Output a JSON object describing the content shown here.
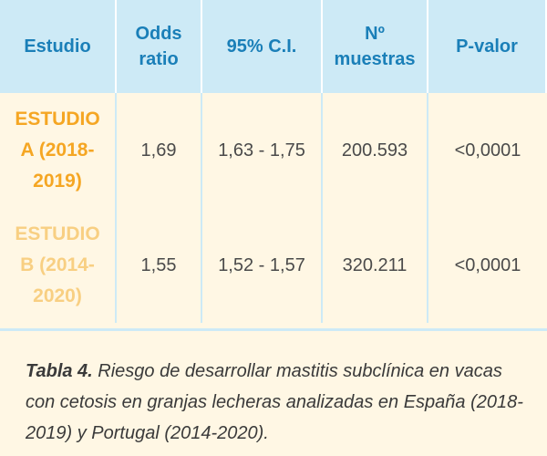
{
  "table": {
    "headers": [
      "Estudio",
      "Odds\nratio",
      "95% C.I.",
      "Nº\nmuestras",
      "P-valor"
    ],
    "rows": [
      {
        "study": "ESTUDIO\nA (2018-\n2019)",
        "odds_ratio": "1,69",
        "ci": "1,63 - 1,75",
        "samples": "200.593",
        "p_value": "<0,0001"
      },
      {
        "study": "ESTUDIO\nB (2014-\n2020)",
        "odds_ratio": "1,55",
        "ci": "1,52 - 1,57",
        "samples": "320.211",
        "p_value": "<0,0001"
      }
    ]
  },
  "caption": {
    "label": "Tabla 4.",
    "text": " Riesgo de desarrollar mastitis subclínica en vacas con cetosis en granjas lecheras analizadas en España (2018-2019) y Portugal (2014-2020)."
  },
  "colors": {
    "header_bg": "#cdeaf6",
    "header_text": "#1a7fb8",
    "study_a": "#f5a623",
    "study_b": "#f8cf82",
    "background": "#fff7e4"
  }
}
